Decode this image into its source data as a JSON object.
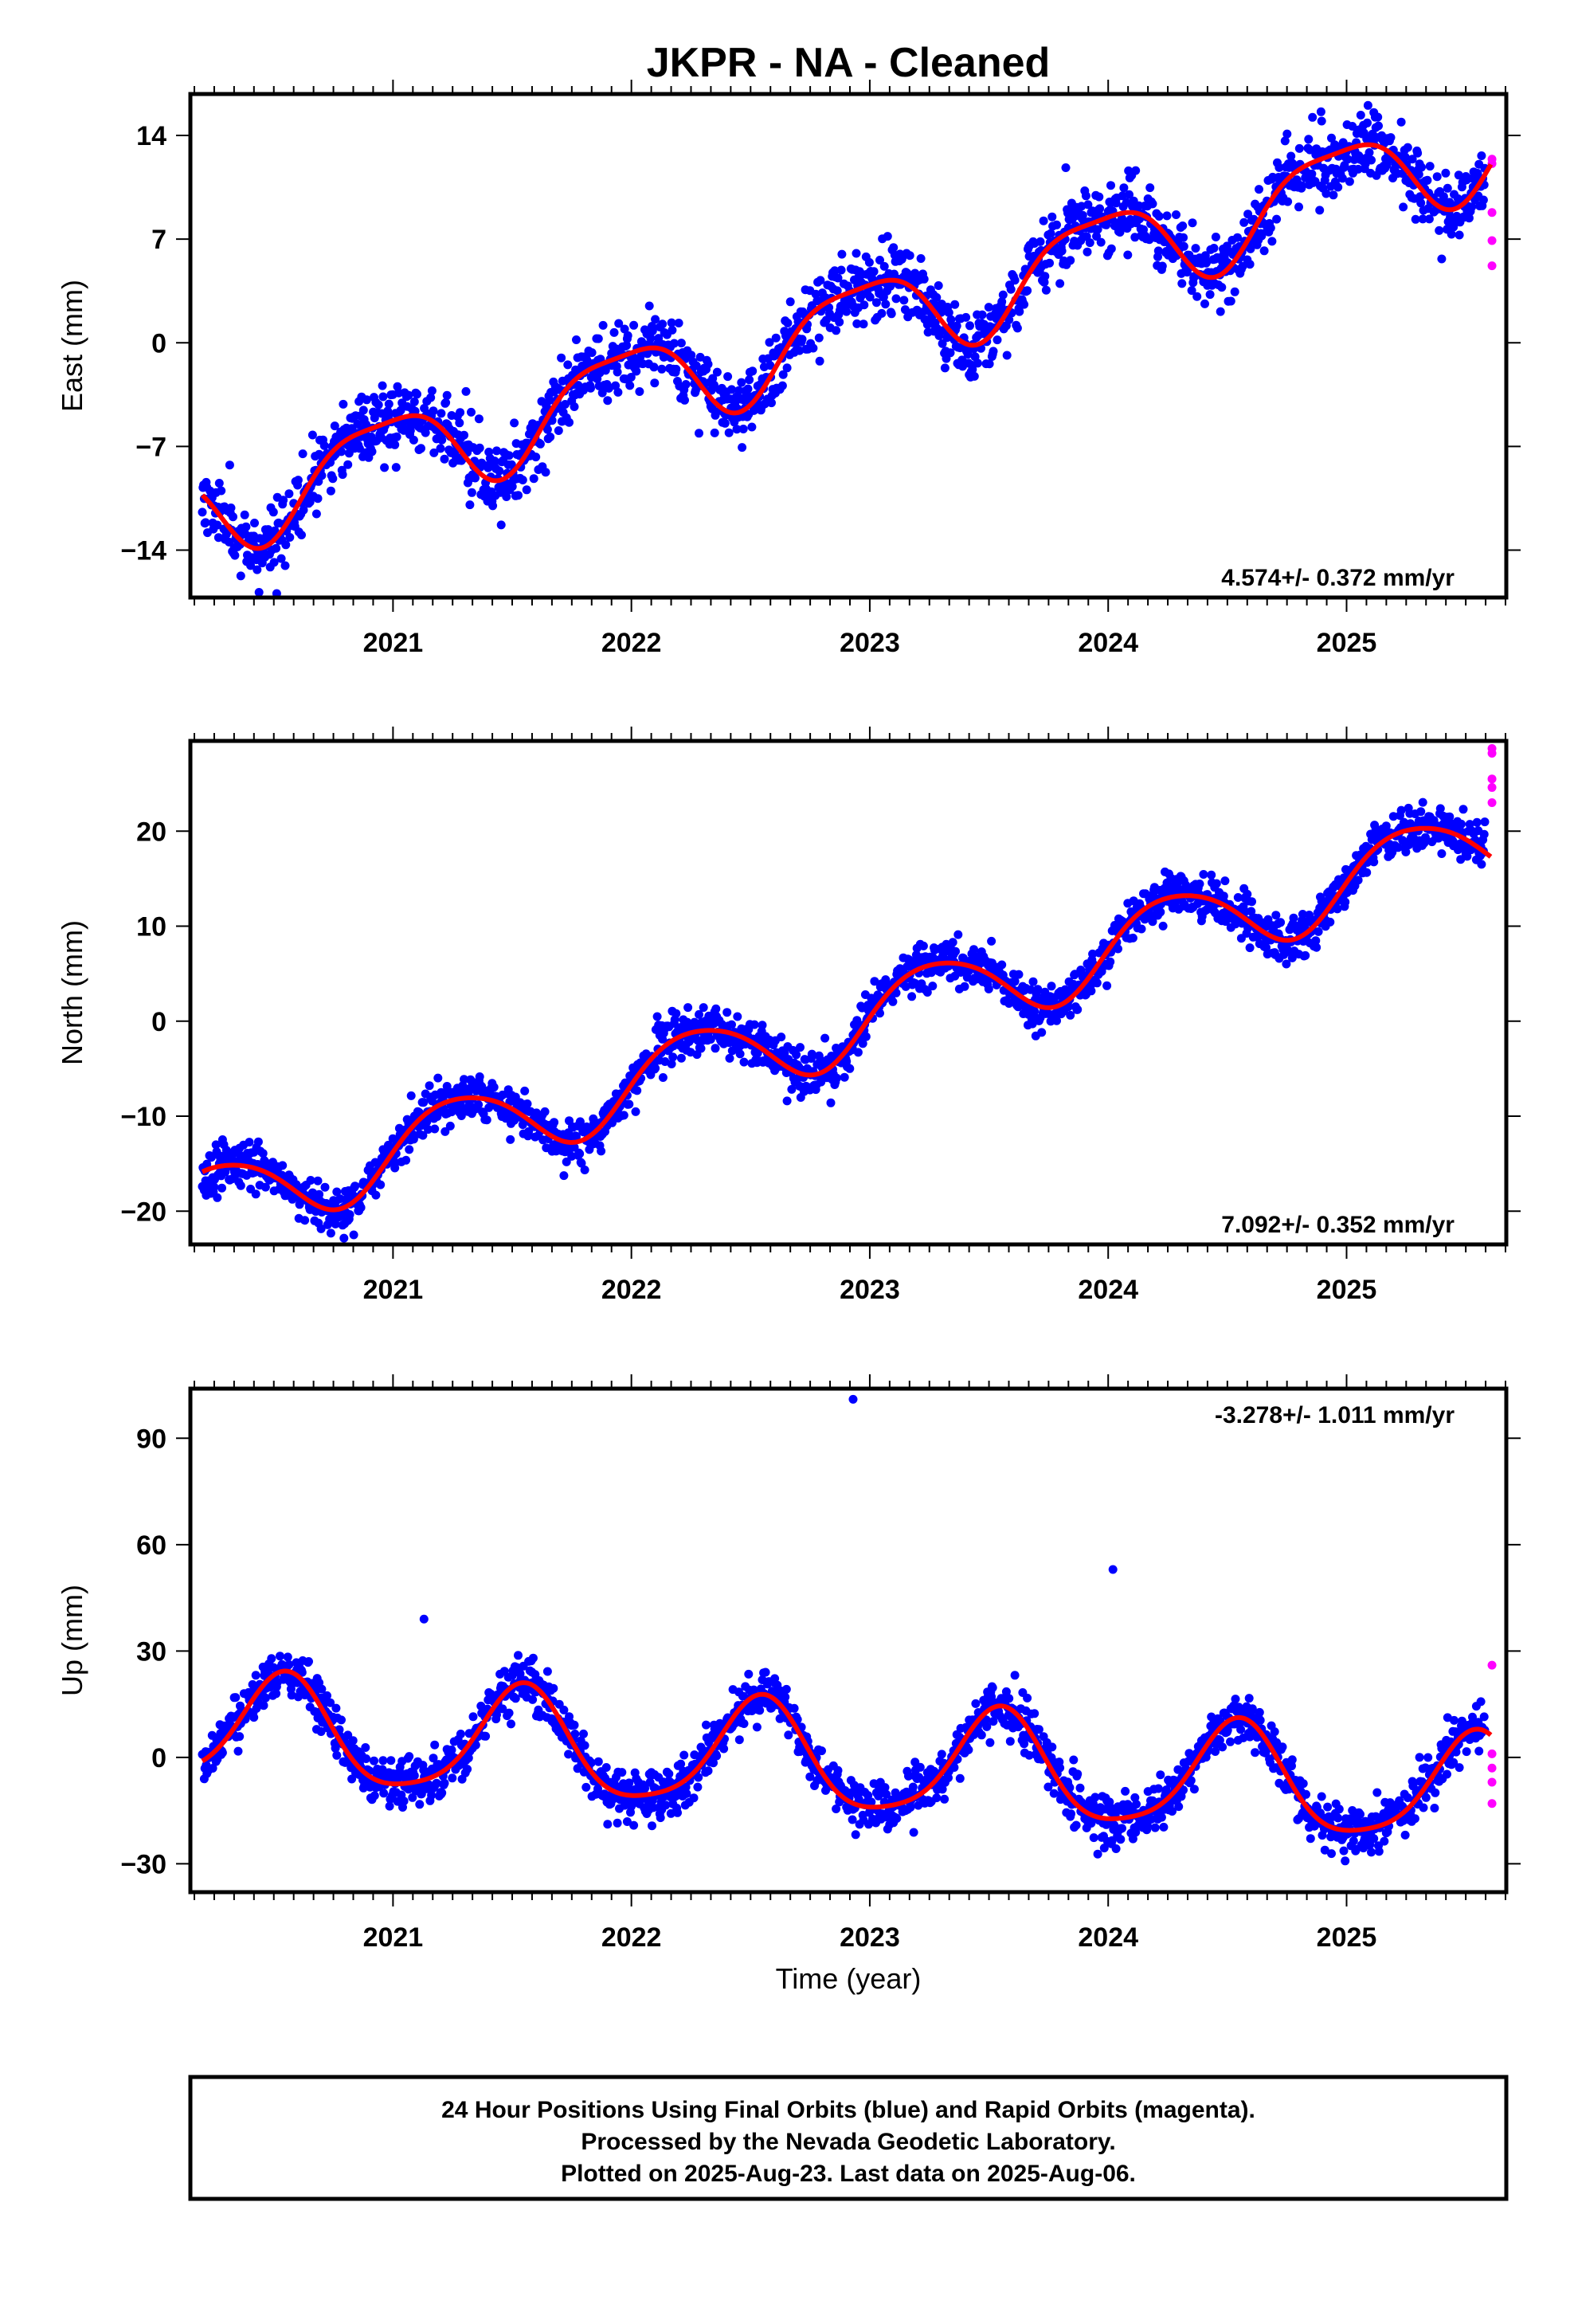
{
  "title": "JKPR  - NA - Cleaned",
  "xlabel": "Time (year)",
  "caption": [
    "24 Hour Positions Using Final Orbits (blue) and Rapid Orbits (magenta).",
    "Processed by the Nevada Geodetic Laboratory.",
    "Plotted on 2025-Aug-23. Last data on 2025-Aug-06."
  ],
  "colors": {
    "final": "#0000ff",
    "rapid": "#ff00ff",
    "fit": "#ff0000"
  },
  "chart_data": [
    {
      "type": "scatter",
      "component": "east",
      "ylabel": "East (mm)",
      "rate": "4.574+/- 0.372 mm/yr",
      "xlim": [
        2020.15,
        2025.67
      ],
      "ylim": [
        -17.2,
        16.8
      ],
      "yticks": [
        -14,
        -7,
        0,
        7,
        14
      ],
      "xticks": [
        2021,
        2022,
        2023,
        2024,
        2025
      ],
      "fit": {
        "rate": 4.574,
        "offset": 1.6,
        "t0": 2023.0,
        "annual_sin": -0.8,
        "annual_cos": 2.9,
        "semi_sin": 0.5,
        "semi_cos": -0.6
      },
      "series": [
        {
          "name": "final",
          "x_range": [
            2020.2,
            2025.58
          ],
          "noise": 1.2,
          "seed": 11
        },
        {
          "name": "rapid",
          "x": [
            2025.61,
            2025.61,
            2025.61,
            2025.61,
            2025.61
          ],
          "y": [
            12.4,
            8.8,
            6.9,
            5.2,
            12.1
          ]
        }
      ]
    },
    {
      "type": "scatter",
      "component": "north",
      "ylabel": "North (mm)",
      "rate": "7.092+/- 0.352 mm/yr",
      "xlim": [
        2020.15,
        2025.67
      ],
      "ylim": [
        -23.5,
        29.5
      ],
      "yticks": [
        -20,
        -10,
        0,
        10,
        20
      ],
      "xticks": [
        2021,
        2022,
        2023,
        2024,
        2025
      ],
      "fit": {
        "rate": 7.092,
        "offset": 0.5,
        "t0": 2023.0,
        "annual_sin": 4.0,
        "annual_cos": -0.5,
        "semi_sin": 0.3,
        "semi_cos": 0.4
      },
      "series": [
        {
          "name": "final",
          "x_range": [
            2020.2,
            2025.58
          ],
          "noise": 1.2,
          "seed": 23
        },
        {
          "name": "rapid",
          "x": [
            2025.61,
            2025.61,
            2025.61,
            2025.61,
            2025.61
          ],
          "y": [
            28.7,
            28.2,
            25.5,
            24.6,
            23.0
          ]
        }
      ]
    },
    {
      "type": "scatter",
      "component": "up",
      "ylabel": "Up (mm)",
      "rate": "-3.278+/- 1.011 mm/yr",
      "xlim": [
        2020.15,
        2025.67
      ],
      "ylim": [
        -38,
        104
      ],
      "yticks": [
        -30,
        0,
        30,
        60,
        90
      ],
      "xticks": [
        2021,
        2022,
        2023,
        2024,
        2025
      ],
      "fit": {
        "rate": -3.278,
        "offset": -1.5,
        "t0": 2023.0,
        "annual_sin": -4.0,
        "annual_cos": -14.5,
        "semi_sin": 2.0,
        "semi_cos": 2.0
      },
      "series": [
        {
          "name": "final",
          "x_range": [
            2020.2,
            2025.58
          ],
          "noise": 3.5,
          "seed": 37,
          "outliers": {
            "x": [
              2021.13,
              2022.93,
              2024.02
            ],
            "y": [
              39,
              101,
              53
            ]
          }
        },
        {
          "name": "rapid",
          "x": [
            2025.61,
            2025.61,
            2025.61,
            2025.61,
            2025.61
          ],
          "y": [
            26.0,
            1.0,
            -3.0,
            -7.0,
            -13.0
          ]
        }
      ]
    }
  ]
}
